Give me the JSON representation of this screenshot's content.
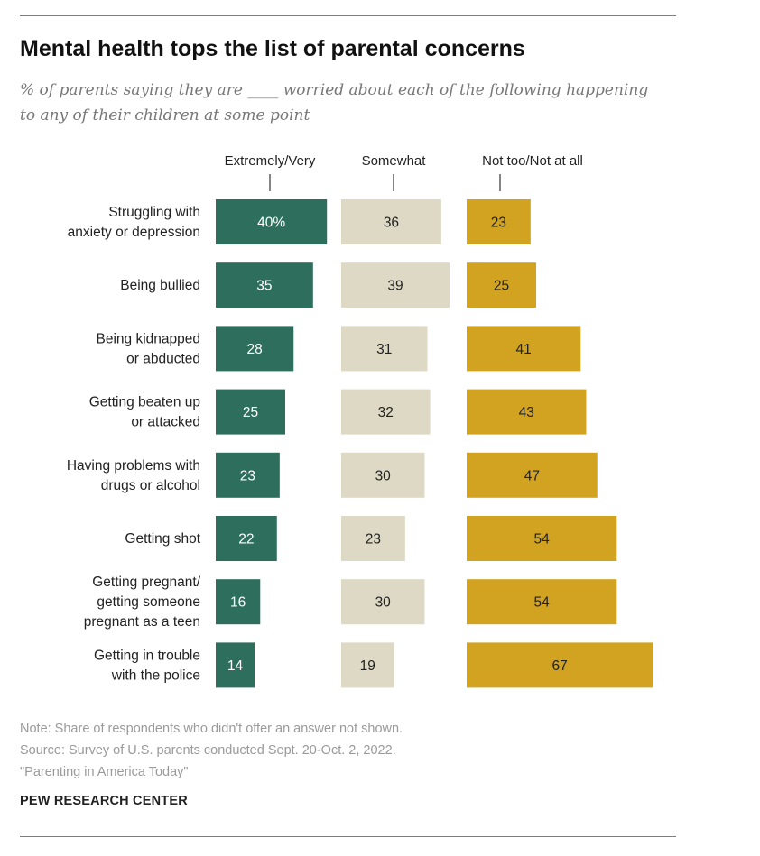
{
  "chart_data": {
    "type": "bar",
    "orientation": "horizontal",
    "title": "Mental health tops the list of parental concerns",
    "subtitle": "% of parents saying they are ____ worried about each of the following happening to any of their children at some point",
    "categories": [
      [
        "Struggling with",
        "anxiety or depression"
      ],
      [
        "Being bullied"
      ],
      [
        "Being kidnapped",
        "or abducted"
      ],
      [
        "Getting beaten up",
        "or attacked"
      ],
      [
        "Having problems with",
        "drugs or alcohol"
      ],
      [
        "Getting shot"
      ],
      [
        "Getting pregnant/",
        "getting someone",
        "pregnant as a teen"
      ],
      [
        "Getting in trouble",
        "with the police"
      ]
    ],
    "series": [
      {
        "name": "Extremely/Very",
        "values": [
          40,
          35,
          28,
          25,
          23,
          22,
          16,
          14
        ],
        "color": "#2e6e5c",
        "label_color": "#ffffff"
      },
      {
        "name": "Somewhat",
        "values": [
          36,
          39,
          31,
          32,
          30,
          23,
          30,
          19
        ],
        "color": "#ddd9c4",
        "label_color": "#222222"
      },
      {
        "name": "Not too/Not at all",
        "values": [
          23,
          25,
          41,
          43,
          47,
          54,
          54,
          67
        ],
        "color": "#d2a321",
        "label_color": "#222222"
      }
    ],
    "first_value_suffix": "%",
    "legend_placement": "top",
    "grid": false
  },
  "notes": [
    "Note: Share of respondents who didn't offer an answer not shown.",
    "Source: Survey of U.S. parents conducted Sept. 20-Oct. 2, 2022.",
    "\"Parenting in America Today\""
  ],
  "brand": "PEW RESEARCH CENTER"
}
